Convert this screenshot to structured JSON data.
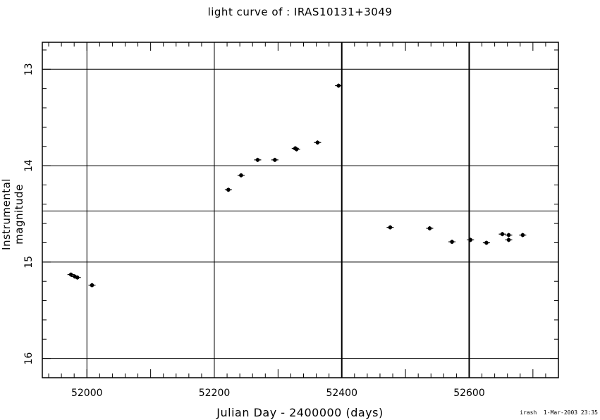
{
  "chart_data": {
    "type": "scatter",
    "title": "light curve of : IRAS10131+3049",
    "xlabel": "Julian Day - 2400000 (days)",
    "ylabel": "Instrumental magnitude",
    "xlim": [
      51930,
      52740
    ],
    "ylim": [
      16.2,
      12.72
    ],
    "y_inverted": true,
    "x_ticks": [
      52000,
      52200,
      52400,
      52600
    ],
    "x_tick_labels": [
      "52000",
      "52200",
      "52400",
      "52600"
    ],
    "y_ticks": [
      13,
      14,
      15,
      16
    ],
    "y_tick_labels": [
      "13",
      "14",
      "15",
      "16"
    ],
    "grid": true,
    "points": [
      {
        "x": 51975,
        "y": 15.13
      },
      {
        "x": 51981,
        "y": 15.15
      },
      {
        "x": 51985,
        "y": 15.16
      },
      {
        "x": 52008,
        "y": 15.24
      },
      {
        "x": 52222,
        "y": 14.25
      },
      {
        "x": 52242,
        "y": 14.1
      },
      {
        "x": 52268,
        "y": 13.94
      },
      {
        "x": 52295,
        "y": 13.94
      },
      {
        "x": 52327,
        "y": 13.82
      },
      {
        "x": 52329,
        "y": 13.83
      },
      {
        "x": 52362,
        "y": 13.76
      },
      {
        "x": 52395,
        "y": 13.17
      },
      {
        "x": 52476,
        "y": 14.64
      },
      {
        "x": 52538,
        "y": 14.65
      },
      {
        "x": 52573,
        "y": 14.79
      },
      {
        "x": 52602,
        "y": 14.77
      },
      {
        "x": 52627,
        "y": 14.8
      },
      {
        "x": 52652,
        "y": 14.71
      },
      {
        "x": 52662,
        "y": 14.72
      },
      {
        "x": 52662,
        "y": 14.77
      },
      {
        "x": 52684,
        "y": 14.72
      }
    ],
    "vertical_gridlines": [
      52000,
      52200,
      52400,
      52600
    ],
    "bold_vertical_lines": [
      52400,
      52600
    ],
    "horizontal_gridlines": [
      13,
      14,
      14.47,
      15,
      16
    ]
  },
  "footer": {
    "stamp": "irash  1-Mar-2003 23:35"
  }
}
